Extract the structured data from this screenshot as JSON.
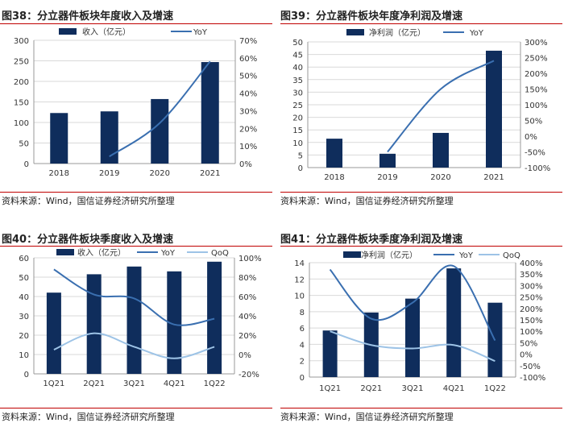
{
  "chart_data": [
    {
      "id": "fig38",
      "type": "bar",
      "title": "图38：分立器件板块年度收入及增速",
      "source": "资料来源：Wind，国信证券经济研究所整理",
      "categories": [
        "2018",
        "2019",
        "2020",
        "2021"
      ],
      "series": [
        {
          "name": "收入（亿元）",
          "kind": "bar",
          "axis": "left",
          "color": "#0f2d5c",
          "values": [
            123,
            127,
            157,
            247
          ]
        },
        {
          "name": "YoY",
          "kind": "line",
          "axis": "right",
          "color": "#3a6fb0",
          "values": [
            null,
            4,
            23,
            58
          ]
        }
      ],
      "yleft": {
        "min": 0,
        "max": 300,
        "step": 50,
        "ticks": [
          "0",
          "50",
          "100",
          "150",
          "200",
          "250",
          "300"
        ]
      },
      "yright": {
        "min": 0,
        "max": 70,
        "step": 10,
        "ticks": [
          "0%",
          "10%",
          "20%",
          "30%",
          "40%",
          "50%",
          "60%",
          "70%"
        ]
      },
      "legend_position": "top"
    },
    {
      "id": "fig39",
      "type": "bar",
      "title": "图39：分立器件板块年度净利润及增速",
      "source": "资料来源：Wind，国信证券经济研究所整理",
      "categories": [
        "2018",
        "2019",
        "2020",
        "2021"
      ],
      "series": [
        {
          "name": "净利润（亿元）",
          "kind": "bar",
          "axis": "left",
          "color": "#0f2d5c",
          "values": [
            11.5,
            5.5,
            13.8,
            46.5
          ]
        },
        {
          "name": "YoY",
          "kind": "line",
          "axis": "right",
          "color": "#3a6fb0",
          "values": [
            null,
            -50,
            150,
            240
          ]
        }
      ],
      "yleft": {
        "min": 0,
        "max": 50,
        "step": 5,
        "ticks": [
          "0",
          "5",
          "10",
          "15",
          "20",
          "25",
          "30",
          "35",
          "40",
          "45",
          "50"
        ]
      },
      "yright": {
        "min": -100,
        "max": 300,
        "step": 50,
        "ticks": [
          "-100%",
          "-50%",
          "0%",
          "50%",
          "100%",
          "150%",
          "200%",
          "250%",
          "300%"
        ]
      },
      "legend_position": "top"
    },
    {
      "id": "fig40",
      "type": "bar",
      "title": "图40：分立器件板块季度收入及增速",
      "source": "资料来源：Wind，国信证券经济研究所整理",
      "categories": [
        "1Q21",
        "2Q21",
        "3Q21",
        "4Q21",
        "1Q22"
      ],
      "series": [
        {
          "name": "收入（亿元）",
          "kind": "bar",
          "axis": "left",
          "color": "#0f2d5c",
          "values": [
            42,
            51.5,
            55.5,
            53,
            58
          ]
        },
        {
          "name": "YoY",
          "kind": "line",
          "axis": "right",
          "color": "#3a6fb0",
          "values": [
            88,
            62,
            58,
            31,
            37
          ]
        },
        {
          "name": "QoQ",
          "kind": "line",
          "axis": "right",
          "color": "#9dc3e6",
          "values": [
            5,
            22,
            8,
            -4,
            8
          ]
        }
      ],
      "yleft": {
        "min": 0,
        "max": 60,
        "step": 10,
        "ticks": [
          "0",
          "10",
          "20",
          "30",
          "40",
          "50",
          "60"
        ]
      },
      "yright": {
        "min": -20,
        "max": 100,
        "step": 20,
        "ticks": [
          "-20%",
          "0%",
          "20%",
          "40%",
          "60%",
          "80%",
          "100%"
        ]
      },
      "legend_position": "top"
    },
    {
      "id": "fig41",
      "type": "bar",
      "title": "图41：分立器件板块季度净利润及增速",
      "source": "资料来源：Wind，国信证券经济研究所整理",
      "categories": [
        "1Q21",
        "2Q21",
        "3Q21",
        "4Q21",
        "1Q22"
      ],
      "series": [
        {
          "name": "净利润（亿元）",
          "kind": "bar",
          "axis": "left",
          "color": "#0f2d5c",
          "values": [
            5.7,
            7.9,
            9.6,
            13.3,
            9.1
          ]
        },
        {
          "name": "YoY",
          "kind": "line",
          "axis": "right",
          "color": "#3a6fb0",
          "values": [
            370,
            155,
            225,
            385,
            60
          ]
        },
        {
          "name": "QoQ",
          "kind": "line",
          "axis": "right",
          "color": "#9dc3e6",
          "values": [
            100,
            40,
            25,
            40,
            -30
          ]
        }
      ],
      "yleft": {
        "min": 0,
        "max": 14,
        "step": 2,
        "ticks": [
          "0",
          "2",
          "4",
          "6",
          "8",
          "10",
          "12",
          "14"
        ]
      },
      "yright": {
        "min": -100,
        "max": 400,
        "step": 50,
        "ticks": [
          "-100%",
          "-50%",
          "0%",
          "50%",
          "100%",
          "150%",
          "200%",
          "250%",
          "300%",
          "350%",
          "400%"
        ]
      },
      "legend_position": "top"
    }
  ]
}
